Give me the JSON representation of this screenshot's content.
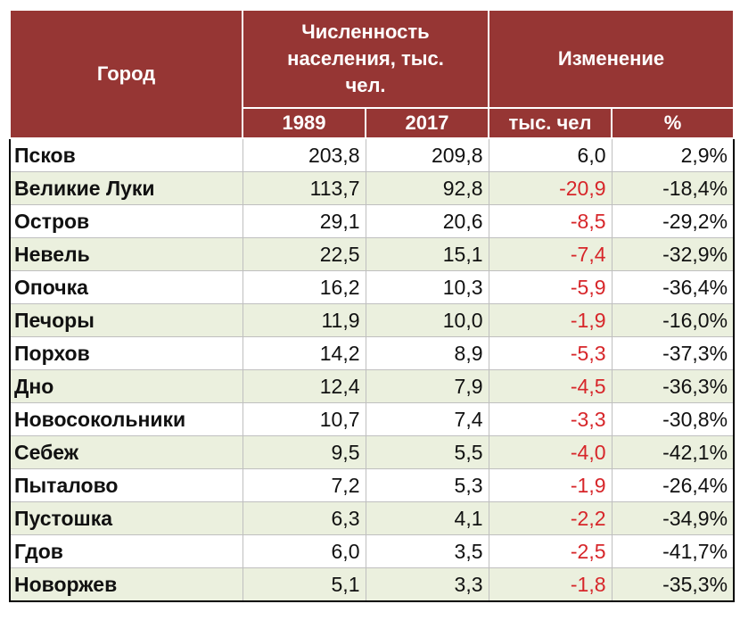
{
  "table": {
    "headers": {
      "city": "Город",
      "population": "Численность населения, тыс. чел.",
      "change": "Изменение",
      "year1": "1989",
      "year2": "2017",
      "change_abs": "тыс. чел",
      "change_pct": "%"
    },
    "colors": {
      "header_bg": "#963634",
      "alt_row_bg": "#ebf0de",
      "negative": "#d7262a"
    },
    "rows": [
      {
        "city": "Псков",
        "y1989": "203,8",
        "y2017": "209,8",
        "diff": "6,0",
        "pct": "2,9%"
      },
      {
        "city": "Великие Луки",
        "y1989": "113,7",
        "y2017": "92,8",
        "diff": "-20,9",
        "pct": "-18,4%"
      },
      {
        "city": "Остров",
        "y1989": "29,1",
        "y2017": "20,6",
        "diff": "-8,5",
        "pct": "-29,2%"
      },
      {
        "city": "Невель",
        "y1989": "22,5",
        "y2017": "15,1",
        "diff": "-7,4",
        "pct": "-32,9%"
      },
      {
        "city": "Опочка",
        "y1989": "16,2",
        "y2017": "10,3",
        "diff": "-5,9",
        "pct": "-36,4%"
      },
      {
        "city": "Печоры",
        "y1989": "11,9",
        "y2017": "10,0",
        "diff": "-1,9",
        "pct": "-16,0%"
      },
      {
        "city": "Порхов",
        "y1989": "14,2",
        "y2017": "8,9",
        "diff": "-5,3",
        "pct": "-37,3%"
      },
      {
        "city": "Дно",
        "y1989": "12,4",
        "y2017": "7,9",
        "diff": "-4,5",
        "pct": "-36,3%"
      },
      {
        "city": "Новосокольники",
        "y1989": "10,7",
        "y2017": "7,4",
        "diff": "-3,3",
        "pct": "-30,8%"
      },
      {
        "city": "Себеж",
        "y1989": "9,5",
        "y2017": "5,5",
        "diff": "-4,0",
        "pct": "-42,1%"
      },
      {
        "city": "Пыталово",
        "y1989": "7,2",
        "y2017": "5,3",
        "diff": "-1,9",
        "pct": "-26,4%"
      },
      {
        "city": "Пустошка",
        "y1989": "6,3",
        "y2017": "4,1",
        "diff": "-2,2",
        "pct": "-34,9%"
      },
      {
        "city": "Гдов",
        "y1989": "6,0",
        "y2017": "3,5",
        "diff": "-2,5",
        "pct": "-41,7%"
      },
      {
        "city": "Новоржев",
        "y1989": "5,1",
        "y2017": "3,3",
        "diff": "-1,8",
        "pct": "-35,3%"
      }
    ]
  }
}
